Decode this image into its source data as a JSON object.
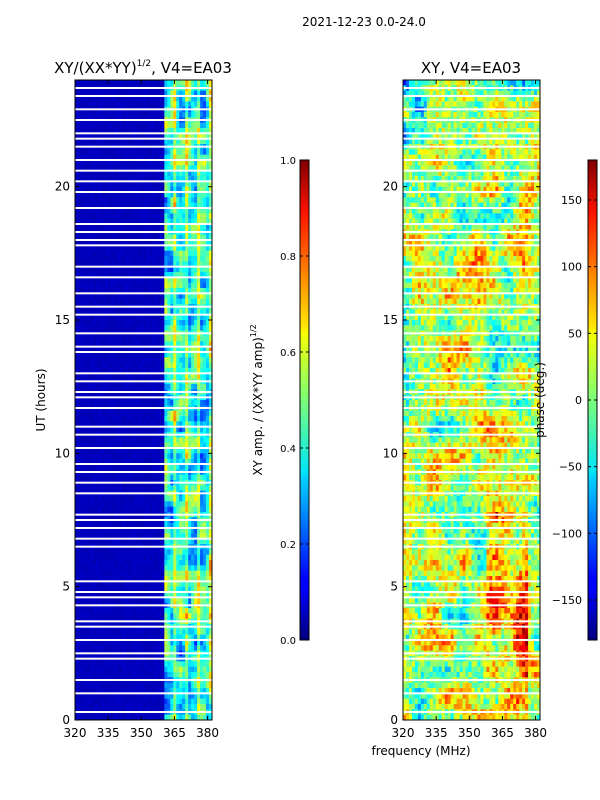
{
  "suptitle": "2021-12-23 0.0-24.0",
  "chart_data": [
    {
      "type": "heatmap",
      "title": "XY/(XX*YY)^{1/2}, V4=EA03",
      "title_main": "XY/(XX*YY)",
      "title_sup": "1/2",
      "title_tail": ", V4=EA03",
      "xlabel": "",
      "ylabel": "UT (hours)",
      "xlim": [
        320,
        382
      ],
      "ylim": [
        0,
        24
      ],
      "xticks": [
        320,
        335,
        350,
        365,
        380
      ],
      "yticks": [
        0,
        5,
        10,
        15,
        20
      ],
      "quantity": "normalized XY amplitude",
      "colorbar": {
        "label": "XY amp. / (XX*YY amp)^{1/2}",
        "label_main": "XY amp. / (XX*YY amp)",
        "label_sup": "1/2",
        "range": [
          0.0,
          1.0
        ],
        "ticks": [
          "0.0",
          "0.2",
          "0.4",
          "0.6",
          "0.8",
          "1.0"
        ],
        "tick_values": [
          0.0,
          0.2,
          0.4,
          0.6,
          0.8,
          1.0
        ]
      },
      "bands": [
        {
          "x_from": 320,
          "x_to": 360,
          "level": "low (~0.05)"
        },
        {
          "x_from": 360,
          "x_to": 382,
          "level": "mixed 0.2-0.6"
        }
      ],
      "gap_hours": [
        0.3,
        1.0,
        1.5,
        2.3,
        2.5,
        3.0,
        3.5,
        3.7,
        4.3,
        4.6,
        4.8,
        5.2,
        6.5,
        6.8,
        7.2,
        7.5,
        7.7,
        8.5,
        8.9,
        9.3,
        9.6,
        10.2,
        10.7,
        11.0,
        11.7,
        12.1,
        12.3,
        12.7,
        13.0,
        13.8,
        14.0,
        14.5,
        15.2,
        15.5,
        16.0,
        16.6,
        17.0,
        17.8,
        18.0,
        18.3,
        18.6,
        19.2,
        19.8,
        20.2,
        20.6,
        21.0,
        21.5,
        21.8,
        22.0,
        22.5,
        22.9,
        23.4,
        23.7
      ]
    },
    {
      "type": "heatmap",
      "title": "XY, V4=EA03",
      "xlabel": "frequency (MHz)",
      "ylabel": "",
      "xlim": [
        320,
        382
      ],
      "ylim": [
        0,
        24
      ],
      "xticks": [
        320,
        335,
        350,
        365,
        380
      ],
      "yticks": [
        0,
        5,
        10,
        15,
        20
      ],
      "quantity": "XY phase",
      "colorbar": {
        "label": "phase (deg.)",
        "range": [
          -180,
          180
        ],
        "ticks": [
          "−150",
          "−100",
          "−50",
          "0",
          "50",
          "100",
          "150"
        ],
        "tick_values": [
          -150,
          -100,
          -50,
          0,
          50,
          100,
          150
        ]
      },
      "gap_hours": [
        0.3,
        1.0,
        1.5,
        2.3,
        2.5,
        3.0,
        3.5,
        3.7,
        4.3,
        4.6,
        4.8,
        5.2,
        6.5,
        6.8,
        7.2,
        7.5,
        7.7,
        8.5,
        8.9,
        9.3,
        9.6,
        10.2,
        10.7,
        11.0,
        11.7,
        12.1,
        12.3,
        12.7,
        13.0,
        13.8,
        14.0,
        14.5,
        15.2,
        15.5,
        16.0,
        16.6,
        17.0,
        17.8,
        18.0,
        18.3,
        18.6,
        19.2,
        19.8,
        20.2,
        20.6,
        21.0,
        21.5,
        21.8,
        22.0,
        22.5,
        22.9,
        23.4,
        23.7
      ]
    }
  ]
}
